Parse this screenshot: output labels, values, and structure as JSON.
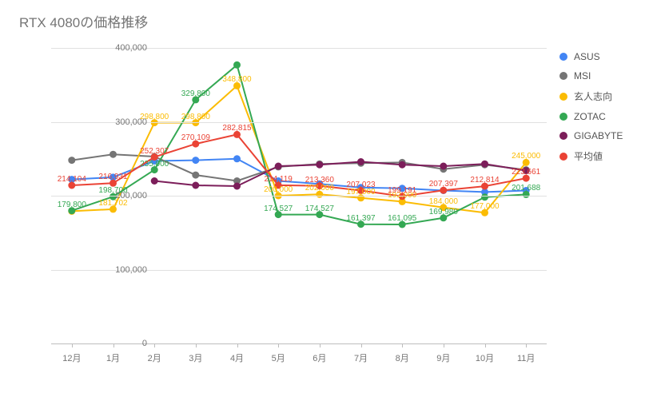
{
  "chart": {
    "title": "RTX 4080の価格推移",
    "title_color": "#757575",
    "title_fontsize": 17,
    "y": {
      "min": 0,
      "max": 400000,
      "step": 100000,
      "label_fontsize": 11,
      "label_color": "#757575"
    },
    "x": {
      "categories": [
        "12月",
        "1月",
        "2月",
        "3月",
        "4月",
        "5月",
        "6月",
        "7月",
        "8月",
        "9月",
        "10月",
        "11月"
      ],
      "label_fontsize": 11,
      "label_color": "#757575"
    },
    "background_color": "#ffffff",
    "grid_color": "#e0e0e0",
    "baseline_color": "#bdbdbd",
    "marker_radius": 4.5,
    "line_width": 2,
    "label_fontsize": 10,
    "series": [
      {
        "name": "ASUS",
        "color": "#4285f4",
        "data": [
          222000,
          225000,
          247000,
          248000,
          250000,
          220000,
          216000,
          211000,
          210000,
          207000,
          205000,
          207000
        ],
        "show_labels": false
      },
      {
        "name": "MSI",
        "color": "#757575",
        "data": [
          248000,
          256000,
          253000,
          228000,
          220000,
          239000,
          243000,
          244000,
          245000,
          236000,
          242000,
          235000
        ],
        "show_labels": false
      },
      {
        "name": "玄人志向",
        "color": "#fbbc04",
        "data": [
          179000,
          181702,
          298800,
          298800,
          348800,
          200000,
          202000,
          197000,
          192000,
          184000,
          177000,
          245000
        ],
        "show_labels": true,
        "label_overrides": {
          "0": "",
          "1": "181,702",
          "2": "298,800",
          "3": "298,800",
          "4": "348,800",
          "5": "200,000",
          "6": "202,000",
          "7": "197,000",
          "8": "192,000",
          "9": "184,000",
          "10": "177,000",
          "11": "245,000"
        }
      },
      {
        "name": "ZOTAC",
        "color": "#34a853",
        "data": [
          179800,
          198700,
          235000,
          329800,
          377000,
          174527,
          174527,
          161397,
          161095,
          169980,
          198000,
          201688
        ],
        "show_labels": true,
        "label_overrides": {
          "0": "179,800",
          "1": "198,700",
          "2": "235,000",
          "3": "329,800",
          "4": "",
          "5": "174,527",
          "6": "174,527",
          "7": "161,397",
          "8": "161,095",
          "9": "169,980",
          "10": "",
          "11": "201,688"
        }
      },
      {
        "name": "GIGABYTE",
        "color": "#7c1e5a",
        "data": [
          null,
          null,
          220000,
          214000,
          213000,
          240000,
          242000,
          246000,
          242000,
          240000,
          243000,
          234000
        ],
        "show_labels": false
      },
      {
        "name": "平均値",
        "color": "#ea4335",
        "data": [
          214104,
          216931,
          252307,
          270109,
          282815,
          214119,
          213360,
          207023,
          199191,
          207397,
          212814,
          223661
        ],
        "show_labels": true,
        "label_overrides": {
          "0": "214,104",
          "1": "216,931",
          "2": "252,307",
          "3": "270,109",
          "4": "282,815",
          "5": "214,119",
          "6": "213,360",
          "7": "207,023",
          "8": "199,191",
          "9": "207,397",
          "10": "212,814",
          "11": "223,661"
        }
      }
    ]
  }
}
